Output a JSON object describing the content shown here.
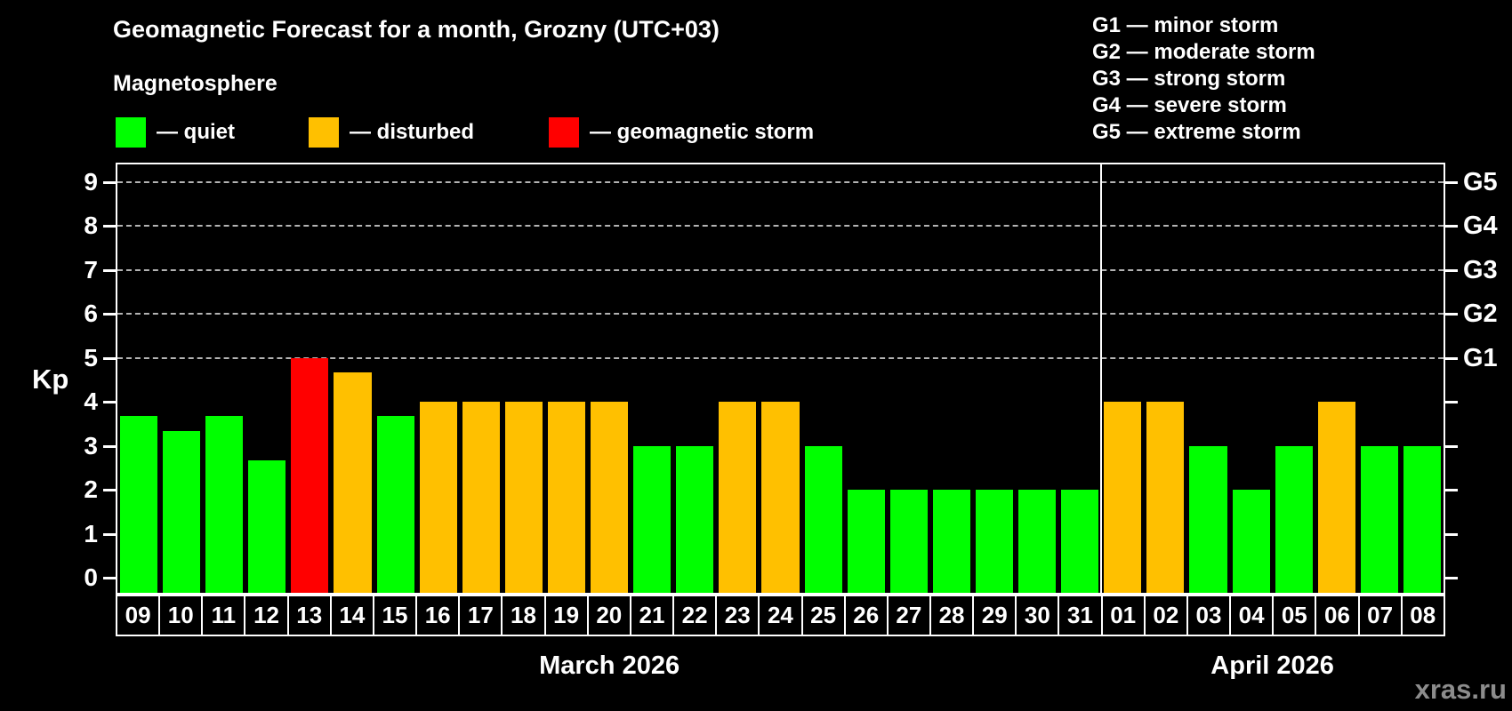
{
  "title": "Geomagnetic Forecast for a month, Grozny (UTC+03)",
  "subtitle": "Magnetosphere",
  "colors": {
    "quiet": "#00ff00",
    "disturbed": "#ffc000",
    "storm": "#ff0000",
    "background": "#000000",
    "axis": "#ffffff",
    "gridline": "#b3b3b3",
    "watermark": "#8c8c8c"
  },
  "legend": [
    {
      "status": "quiet",
      "label": "— quiet",
      "color": "#00ff00"
    },
    {
      "status": "disturbed",
      "label": "— disturbed",
      "color": "#ffc000"
    },
    {
      "status": "storm",
      "label": "— geomagnetic storm",
      "color": "#ff0000"
    }
  ],
  "storm_scale_legend": [
    "G1 — minor storm",
    "G2 — moderate storm",
    "G3 — strong storm",
    "G4 — severe storm",
    "G5 — extreme storm"
  ],
  "watermark": "xras.ru",
  "chart_data": {
    "type": "bar",
    "title": "Geomagnetic Forecast for a month, Grozny (UTC+03)",
    "xlabel": "",
    "ylabel": "Kp",
    "ylim": [
      0,
      9
    ],
    "yticks": [
      0,
      1,
      2,
      3,
      4,
      5,
      6,
      7,
      8,
      9
    ],
    "gridlines_at_kp": [
      5,
      6,
      7,
      8,
      9
    ],
    "grid": "dashed horizontal at Kp 5-9 only",
    "legend_position": "top-left",
    "right_axis": [
      {
        "kp": 5,
        "label": "G1"
      },
      {
        "kp": 6,
        "label": "G2"
      },
      {
        "kp": 7,
        "label": "G3"
      },
      {
        "kp": 8,
        "label": "G4"
      },
      {
        "kp": 9,
        "label": "G5"
      }
    ],
    "months": [
      {
        "label": "March 2026",
        "start_index": 0,
        "days": 23
      },
      {
        "label": "April 2026",
        "start_index": 23,
        "days": 8
      }
    ],
    "bars": [
      {
        "day": "09",
        "kp": 3.67,
        "status": "quiet"
      },
      {
        "day": "10",
        "kp": 3.33,
        "status": "quiet"
      },
      {
        "day": "11",
        "kp": 3.67,
        "status": "quiet"
      },
      {
        "day": "12",
        "kp": 2.67,
        "status": "quiet"
      },
      {
        "day": "13",
        "kp": 5.0,
        "status": "storm"
      },
      {
        "day": "14",
        "kp": 4.67,
        "status": "disturbed"
      },
      {
        "day": "15",
        "kp": 3.67,
        "status": "quiet"
      },
      {
        "day": "16",
        "kp": 4.0,
        "status": "disturbed"
      },
      {
        "day": "17",
        "kp": 4.0,
        "status": "disturbed"
      },
      {
        "day": "18",
        "kp": 4.0,
        "status": "disturbed"
      },
      {
        "day": "19",
        "kp": 4.0,
        "status": "disturbed"
      },
      {
        "day": "20",
        "kp": 4.0,
        "status": "disturbed"
      },
      {
        "day": "21",
        "kp": 3.0,
        "status": "quiet"
      },
      {
        "day": "22",
        "kp": 3.0,
        "status": "quiet"
      },
      {
        "day": "23",
        "kp": 4.0,
        "status": "disturbed"
      },
      {
        "day": "24",
        "kp": 4.0,
        "status": "disturbed"
      },
      {
        "day": "25",
        "kp": 3.0,
        "status": "quiet"
      },
      {
        "day": "26",
        "kp": 2.0,
        "status": "quiet"
      },
      {
        "day": "27",
        "kp": 2.0,
        "status": "quiet"
      },
      {
        "day": "28",
        "kp": 2.0,
        "status": "quiet"
      },
      {
        "day": "29",
        "kp": 2.0,
        "status": "quiet"
      },
      {
        "day": "30",
        "kp": 2.0,
        "status": "quiet"
      },
      {
        "day": "31",
        "kp": 2.0,
        "status": "quiet"
      },
      {
        "day": "01",
        "kp": 4.0,
        "status": "disturbed"
      },
      {
        "day": "02",
        "kp": 4.0,
        "status": "disturbed"
      },
      {
        "day": "03",
        "kp": 3.0,
        "status": "quiet"
      },
      {
        "day": "04",
        "kp": 2.0,
        "status": "quiet"
      },
      {
        "day": "05",
        "kp": 3.0,
        "status": "quiet"
      },
      {
        "day": "06",
        "kp": 4.0,
        "status": "disturbed"
      },
      {
        "day": "07",
        "kp": 3.0,
        "status": "quiet"
      },
      {
        "day": "08",
        "kp": 3.0,
        "status": "quiet"
      }
    ]
  }
}
